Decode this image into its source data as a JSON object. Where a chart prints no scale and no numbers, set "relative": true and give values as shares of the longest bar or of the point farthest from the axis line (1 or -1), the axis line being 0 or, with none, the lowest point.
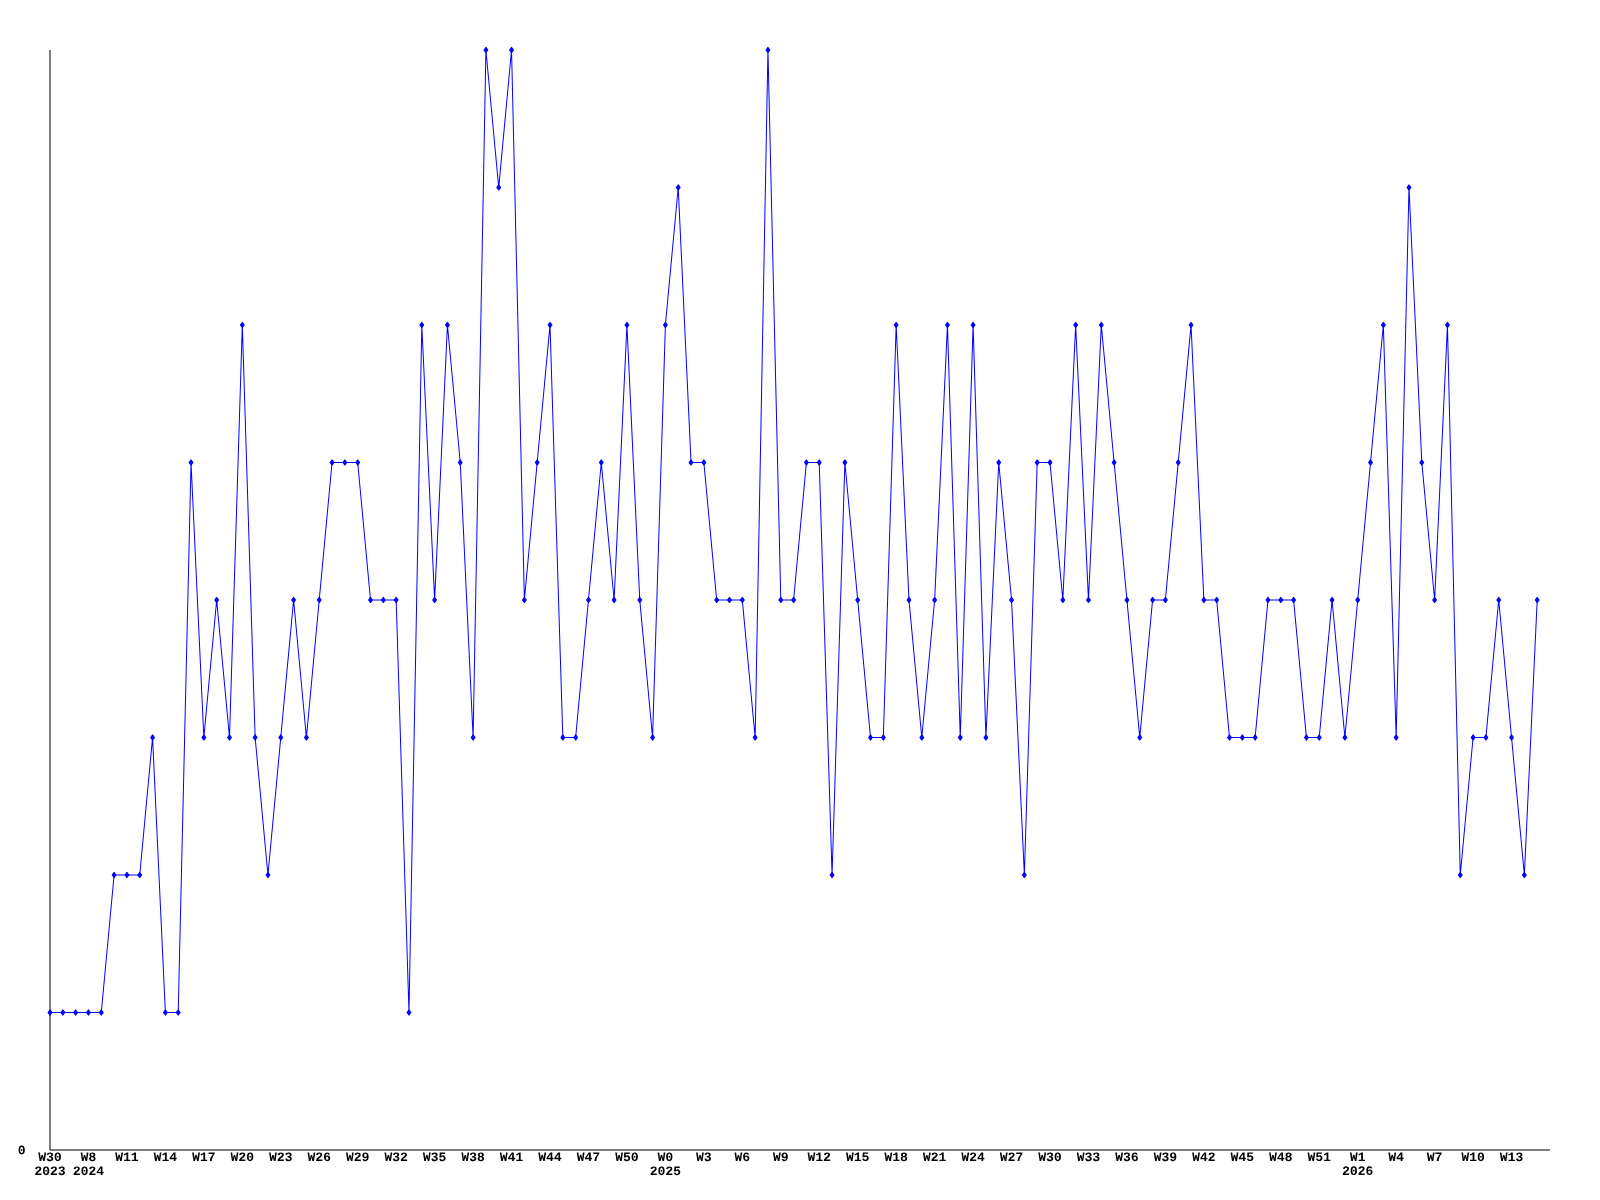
{
  "chart_data": {
    "type": "line",
    "relative": true,
    "marker": "diamond",
    "line_style": "solid",
    "grid": false,
    "annotations": [
      "0"
    ],
    "categories": [
      "W30 2023",
      null,
      null,
      "W8 2024",
      null,
      null,
      "W11",
      null,
      null,
      "W14",
      null,
      null,
      "W17",
      null,
      null,
      "W20",
      null,
      null,
      "W23",
      null,
      null,
      "W26",
      null,
      null,
      "W29",
      null,
      null,
      "W32",
      null,
      null,
      "W35",
      null,
      null,
      "W38",
      null,
      null,
      "W41",
      null,
      null,
      "W44",
      null,
      null,
      "W47",
      null,
      null,
      "W50",
      null,
      null,
      "W0 2025",
      null,
      null,
      "W3",
      null,
      null,
      "W6",
      null,
      null,
      "W9",
      null,
      null,
      "W12",
      null,
      null,
      "W15",
      null,
      null,
      "W18",
      null,
      null,
      "W21",
      null,
      null,
      "W24",
      null,
      null,
      "W27",
      null,
      null,
      "W30",
      null,
      null,
      "W33",
      null,
      null,
      "W36",
      null,
      null,
      "W39",
      null,
      null,
      "W42",
      null,
      null,
      "W45",
      null,
      null,
      "W48",
      null,
      null,
      "W51",
      null,
      null,
      "W1 2026",
      null,
      null,
      "W4",
      null,
      null,
      "W7",
      null,
      null,
      "W10",
      null,
      null,
      "W13",
      null,
      null
    ],
    "series": [
      {
        "color": "#0000ff",
        "values": [
          0.125,
          0.125,
          0.125,
          0.125,
          0.125,
          0.25,
          0.25,
          0.25,
          0.375,
          0.125,
          0.125,
          0.625,
          0.375,
          0.5,
          0.375,
          0.75,
          0.375,
          0.25,
          0.375,
          0.5,
          0.375,
          0.5,
          0.625,
          0.625,
          0.625,
          0.5,
          0.5,
          0.5,
          0.125,
          0.75,
          0.5,
          0.75,
          0.625,
          0.375,
          1,
          0.875,
          1,
          0.5,
          0.625,
          0.75,
          0.375,
          0.375,
          0.5,
          0.625,
          0.5,
          0.75,
          0.5,
          0.375,
          0.75,
          0.875,
          0.625,
          0.625,
          0.5,
          0.5,
          0.5,
          0.375,
          1,
          0.5,
          0.5,
          0.625,
          0.625,
          0.25,
          0.625,
          0.5,
          0.375,
          0.375,
          0.75,
          0.5,
          0.375,
          0.5,
          0.75,
          0.375,
          0.75,
          0.375,
          0.625,
          0.5,
          0.25,
          0.625,
          0.625,
          0.5,
          0.75,
          0.5,
          0.75,
          0.625,
          0.5,
          0.375,
          0.5,
          0.5,
          0.625,
          0.75,
          0.5,
          0.5,
          0.375,
          0.375,
          0.375,
          0.5,
          0.5,
          0.5,
          0.375,
          0.375,
          0.5,
          0.375,
          0.5,
          0.625,
          0.75,
          0.375,
          0.875,
          0.625,
          0.5,
          0.75,
          0.25,
          0.375,
          0.375,
          0.5,
          0.375,
          0.25,
          0.5
        ]
      }
    ]
  }
}
